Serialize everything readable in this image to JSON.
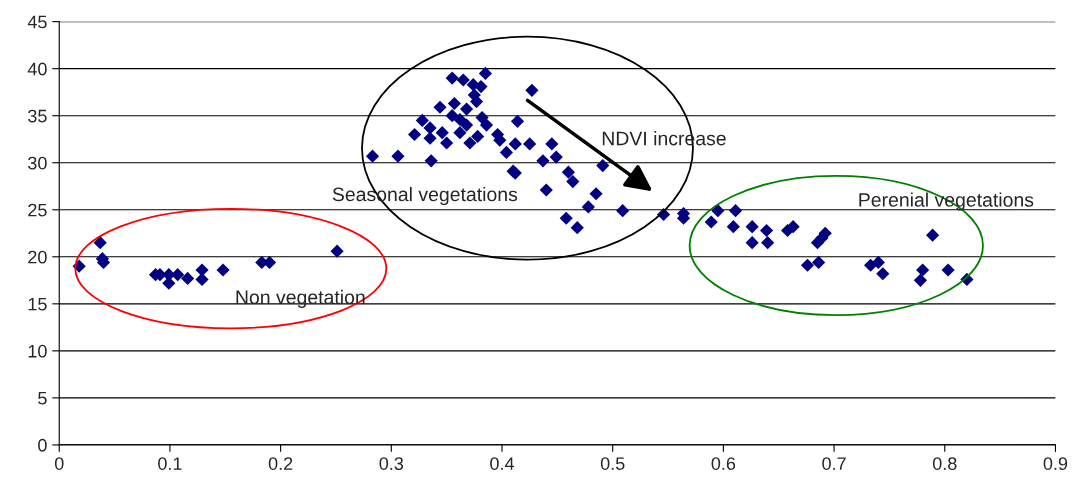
{
  "chart_data": {
    "type": "scatter",
    "marker": "diamond",
    "grid": "y",
    "legend": false,
    "xlim": [
      0,
      0.9
    ],
    "xticks": [
      0,
      0.1,
      0.2,
      0.3,
      0.4,
      0.5,
      0.6,
      0.7,
      0.8,
      0.9
    ],
    "ylim": [
      0,
      45
    ],
    "yticks": [
      0,
      5,
      10,
      15,
      20,
      25,
      30,
      35,
      40,
      45
    ],
    "series": [
      {
        "color": "#000080",
        "x": [
          0.018,
          0.037,
          0.039,
          0.04,
          0.087,
          0.091,
          0.099,
          0.099,
          0.107,
          0.116,
          0.129,
          0.129,
          0.148,
          0.183,
          0.19,
          0.251,
          0.385,
          0.355,
          0.365,
          0.374,
          0.381,
          0.427,
          0.375,
          0.377,
          0.344,
          0.357,
          0.368,
          0.355,
          0.362,
          0.382,
          0.328,
          0.414,
          0.335,
          0.368,
          0.386,
          0.321,
          0.346,
          0.362,
          0.396,
          0.335,
          0.35,
          0.378,
          0.371,
          0.398,
          0.412,
          0.425,
          0.445,
          0.283,
          0.306,
          0.336,
          0.404,
          0.437,
          0.449,
          0.41,
          0.412,
          0.46,
          0.464,
          0.44,
          0.485,
          0.478,
          0.458,
          0.468,
          0.491,
          0.509,
          0.546,
          0.564,
          0.564,
          0.589,
          0.595,
          0.609,
          0.611,
          0.626,
          0.626,
          0.639,
          0.64,
          0.658,
          0.663,
          0.685,
          0.689,
          0.692,
          0.676,
          0.686,
          0.733,
          0.74,
          0.744,
          0.78,
          0.778,
          0.789,
          0.803,
          0.82
        ],
        "values": [
          19.0,
          21.5,
          19.8,
          19.4,
          18.1,
          18.1,
          18.1,
          17.2,
          18.1,
          17.7,
          18.6,
          17.6,
          18.6,
          19.4,
          19.4,
          20.6,
          39.5,
          39.0,
          38.8,
          38.3,
          38.1,
          37.7,
          37.2,
          36.5,
          35.9,
          36.3,
          35.7,
          35.0,
          34.6,
          34.8,
          34.5,
          34.4,
          33.7,
          34.0,
          34.0,
          33.0,
          33.2,
          33.2,
          33.0,
          32.6,
          32.1,
          32.8,
          32.1,
          32.4,
          32.0,
          32.0,
          32.0,
          30.7,
          30.7,
          30.2,
          31.1,
          30.2,
          30.6,
          29.1,
          28.9,
          29.0,
          28.0,
          27.1,
          26.7,
          25.3,
          24.1,
          23.1,
          29.7,
          24.9,
          24.5,
          24.6,
          24.1,
          23.7,
          24.9,
          23.2,
          24.9,
          23.2,
          21.5,
          22.8,
          21.5,
          22.8,
          23.2,
          21.5,
          22.0,
          22.5,
          19.1,
          19.4,
          19.1,
          19.4,
          18.2,
          18.6,
          17.5,
          22.3,
          18.6,
          17.6
        ]
      }
    ],
    "annotations": [
      "NDVI increase",
      "Seasonal vegetations",
      "Perenial vegetations",
      "Non vegetation"
    ]
  }
}
